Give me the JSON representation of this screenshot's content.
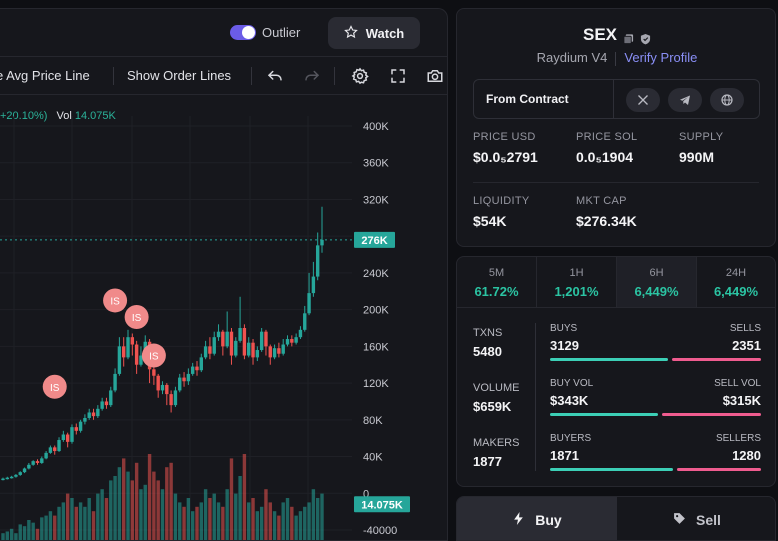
{
  "header": {
    "outlier_label": "Outlier",
    "watch_label": "Watch"
  },
  "toolbar": {
    "avg_price_label": "e Avg Price Line",
    "order_lines_label": "Show Order Lines"
  },
  "legend": {
    "change": "+20.10%)",
    "vol_label": "Vol",
    "vol_value": "14.075K"
  },
  "token": {
    "name": "SEX",
    "dex": "Raydium V4",
    "verify_label": "Verify Profile",
    "from_contract_label": "From Contract"
  },
  "stats": {
    "price_usd_label": "PRICE USD",
    "price_usd": "$0.0₅2791",
    "price_sol_label": "PRICE SOL",
    "price_sol": "0.0₅1904",
    "supply_label": "SUPPLY",
    "supply": "990M",
    "liquidity_label": "LIQUIDITY",
    "liquidity": "$54K",
    "mktcap_label": "MKT CAP",
    "mktcap": "$276.34K"
  },
  "timeframes": [
    {
      "label": "5M",
      "value": "61.72%"
    },
    {
      "label": "1H",
      "value": "1,201%"
    },
    {
      "label": "6H",
      "value": "6,449%"
    },
    {
      "label": "24H",
      "value": "6,449%"
    }
  ],
  "activity": {
    "txns_label": "TXNS",
    "txns": "5480",
    "volume_label": "VOLUME",
    "volume": "$659K",
    "makers_label": "MAKERS",
    "makers": "1877",
    "buys_label": "BUYS",
    "buys": "3129",
    "sells_label": "SELLS",
    "sells": "2351",
    "buy_vol_label": "BUY VOL",
    "buy_vol": "$343K",
    "sell_vol_label": "SELL VOL",
    "sell_vol": "$315K",
    "buyers_label": "BUYERS",
    "buyers": "1871",
    "sellers_label": "SELLERS",
    "sellers": "1280",
    "buy_share": 0.571,
    "buy_vol_share": 0.521,
    "buyer_share": 0.594
  },
  "trade": {
    "buy_label": "Buy",
    "sell_label": "Sell"
  },
  "colors": {
    "up": "#26a69a",
    "down": "#ef5350",
    "marker": "#f08a8a",
    "buy_bar": "#3ccfb6",
    "sell_bar": "#ef5c8f",
    "accent": "#8a8ff6"
  },
  "chart_data": {
    "type": "candlestick",
    "price_axis_ticks": [
      "400K",
      "360K",
      "320K",
      "280K",
      "240K",
      "200K",
      "160K",
      "120K",
      "80K",
      "40K",
      "0",
      "-40000"
    ],
    "current_price_label": "276K",
    "current_volume_label": "14.075K",
    "marker_label": "IS",
    "price_min": -40000,
    "price_max": 400000,
    "candles": [
      [
        15000,
        16000,
        14000,
        17000
      ],
      [
        16000,
        17000,
        15000,
        18000
      ],
      [
        17000,
        18000,
        16000,
        19000
      ],
      [
        18000,
        20000,
        17000,
        21000
      ],
      [
        20000,
        23000,
        19000,
        24000
      ],
      [
        23000,
        27000,
        22000,
        28000
      ],
      [
        27000,
        31000,
        26000,
        33000
      ],
      [
        31000,
        35000,
        30000,
        36000
      ],
      [
        35000,
        33000,
        31000,
        37000
      ],
      [
        33000,
        38000,
        32000,
        40000
      ],
      [
        38000,
        44000,
        37000,
        46000
      ],
      [
        44000,
        50000,
        43000,
        52000
      ],
      [
        50000,
        46000,
        42000,
        52000
      ],
      [
        46000,
        58000,
        45000,
        61000
      ],
      [
        58000,
        64000,
        56000,
        68000
      ],
      [
        64000,
        56000,
        50000,
        66000
      ],
      [
        56000,
        72000,
        54000,
        75000
      ],
      [
        72000,
        68000,
        64000,
        76000
      ],
      [
        68000,
        78000,
        66000,
        80000
      ],
      [
        78000,
        82000,
        75000,
        86000
      ],
      [
        82000,
        88000,
        80000,
        92000
      ],
      [
        88000,
        84000,
        80000,
        92000
      ],
      [
        84000,
        92000,
        82000,
        96000
      ],
      [
        92000,
        100000,
        90000,
        104000
      ],
      [
        100000,
        96000,
        92000,
        104000
      ],
      [
        96000,
        112000,
        94000,
        116000
      ],
      [
        112000,
        130000,
        110000,
        136000
      ],
      [
        130000,
        160000,
        128000,
        170000
      ],
      [
        160000,
        148000,
        138000,
        170000
      ],
      [
        148000,
        170000,
        146000,
        178000
      ],
      [
        170000,
        162000,
        150000,
        174000
      ],
      [
        162000,
        140000,
        130000,
        166000
      ],
      [
        140000,
        150000,
        138000,
        160000
      ],
      [
        150000,
        165000,
        148000,
        172000
      ],
      [
        165000,
        135000,
        120000,
        168000
      ],
      [
        135000,
        128000,
        118000,
        140000
      ],
      [
        128000,
        112000,
        104000,
        130000
      ],
      [
        112000,
        118000,
        108000,
        122000
      ],
      [
        118000,
        108000,
        96000,
        120000
      ],
      [
        108000,
        96000,
        88000,
        112000
      ],
      [
        96000,
        112000,
        94000,
        116000
      ],
      [
        112000,
        126000,
        110000,
        130000
      ],
      [
        126000,
        122000,
        116000,
        132000
      ],
      [
        122000,
        130000,
        118000,
        136000
      ],
      [
        130000,
        138000,
        128000,
        142000
      ],
      [
        138000,
        134000,
        128000,
        144000
      ],
      [
        134000,
        148000,
        132000,
        152000
      ],
      [
        148000,
        160000,
        146000,
        166000
      ],
      [
        160000,
        152000,
        146000,
        170000
      ],
      [
        152000,
        170000,
        150000,
        176000
      ],
      [
        170000,
        176000,
        166000,
        184000
      ],
      [
        176000,
        160000,
        150000,
        178000
      ],
      [
        160000,
        176000,
        158000,
        198000
      ],
      [
        176000,
        150000,
        140000,
        180000
      ],
      [
        150000,
        166000,
        148000,
        170000
      ],
      [
        166000,
        180000,
        164000,
        214000
      ],
      [
        180000,
        150000,
        146000,
        184000
      ],
      [
        150000,
        164000,
        148000,
        170000
      ],
      [
        164000,
        148000,
        140000,
        168000
      ],
      [
        148000,
        156000,
        144000,
        160000
      ],
      [
        156000,
        176000,
        154000,
        180000
      ],
      [
        176000,
        160000,
        150000,
        178000
      ],
      [
        160000,
        148000,
        140000,
        162000
      ],
      [
        148000,
        158000,
        146000,
        162000
      ],
      [
        158000,
        152000,
        148000,
        164000
      ],
      [
        152000,
        162000,
        150000,
        168000
      ],
      [
        162000,
        168000,
        160000,
        172000
      ],
      [
        168000,
        164000,
        160000,
        172000
      ],
      [
        164000,
        170000,
        162000,
        174000
      ],
      [
        170000,
        178000,
        168000,
        182000
      ],
      [
        178000,
        196000,
        176000,
        204000
      ],
      [
        196000,
        218000,
        194000,
        240000
      ],
      [
        218000,
        236000,
        214000,
        252000
      ],
      [
        236000,
        270000,
        232000,
        284000
      ],
      [
        270000,
        276000,
        262000,
        312000
      ]
    ],
    "volumes": [
      0.1,
      0.12,
      0.15,
      0.1,
      0.2,
      0.18,
      0.25,
      0.22,
      0.15,
      0.28,
      0.3,
      0.35,
      0.3,
      0.4,
      0.45,
      0.55,
      0.5,
      0.4,
      0.45,
      0.4,
      0.5,
      0.35,
      0.55,
      0.6,
      0.5,
      0.7,
      0.75,
      0.85,
      0.95,
      0.8,
      0.7,
      0.9,
      0.6,
      0.65,
      1.0,
      0.8,
      0.7,
      0.6,
      0.85,
      0.9,
      0.55,
      0.45,
      0.4,
      0.5,
      0.35,
      0.4,
      0.45,
      0.6,
      0.5,
      0.55,
      0.45,
      0.4,
      0.6,
      0.95,
      0.55,
      0.75,
      1.0,
      0.45,
      0.5,
      0.35,
      0.4,
      0.6,
      0.45,
      0.35,
      0.3,
      0.45,
      0.5,
      0.4,
      0.3,
      0.35,
      0.4,
      0.45,
      0.6,
      0.5,
      0.55
    ],
    "markers": [
      {
        "candle": 12,
        "price": 116000
      },
      {
        "candle": 26,
        "price": 210000
      },
      {
        "candle": 31,
        "price": 192000
      },
      {
        "candle": 35,
        "price": 150000
      }
    ]
  }
}
